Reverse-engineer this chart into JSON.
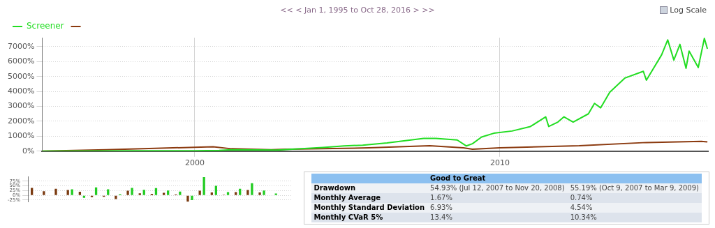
{
  "chart_data": [
    {
      "type": "line",
      "subtitle": "<< < Jan 1, 1995 to Oct 28, 2016 > >>",
      "annotations": [
        "Log Scale"
      ],
      "legend": "top",
      "grid": true,
      "marker": "none",
      "line_style": "solid",
      "xlim": [
        1995,
        2016.82
      ],
      "xticks": [
        2000,
        2010
      ],
      "ylim": [
        0,
        7600
      ],
      "yticks": [
        {
          "value": 0,
          "label": "0%"
        },
        {
          "value": 1000,
          "label": "1000%"
        },
        {
          "value": 2000,
          "label": "2000%"
        },
        {
          "value": 3000,
          "label": "3000%"
        },
        {
          "value": 4000,
          "label": "4000%"
        },
        {
          "value": 5000,
          "label": "5000%"
        },
        {
          "value": 6000,
          "label": "6000%"
        },
        {
          "value": 7000,
          "label": "7000%"
        }
      ],
      "series": [
        {
          "name": "Screener",
          "color": "#22dd22",
          "x": [
            1995,
            1998,
            2000,
            2000.8,
            2001.2,
            2002.7,
            2003.8,
            2004.2,
            2004.9,
            2005.5,
            2006.3,
            2007.5,
            2007.9,
            2008.6,
            2008.9,
            2009.1,
            2009.4,
            2009.8,
            2010.4,
            2011.0,
            2011.5,
            2011.6,
            2011.9,
            2012.1,
            2012.4,
            2012.9,
            2013.1,
            2013.3,
            2013.6,
            2014.1,
            2014.7,
            2014.8,
            2015.3,
            2015.5,
            2015.7,
            2015.9,
            2016.1,
            2016.2,
            2016.5,
            2016.7,
            2016.8
          ],
          "values": [
            0,
            20,
            30,
            50,
            90,
            70,
            200,
            250,
            350,
            400,
            550,
            850,
            850,
            750,
            350,
            500,
            950,
            1200,
            1350,
            1650,
            2300,
            1650,
            1950,
            2300,
            1950,
            2500,
            3200,
            2900,
            3950,
            4900,
            5350,
            4750,
            6450,
            7450,
            6100,
            7150,
            5550,
            6700,
            5600,
            7550,
            6850
          ]
        },
        {
          "color": "#8b3a0f",
          "x": [
            1995,
            1997.1,
            1998.5,
            2000,
            2000.6,
            2001.2,
            2002.5,
            2003,
            2005.7,
            2007.7,
            2008.8,
            2009.1,
            2010,
            2012.6,
            2014.8,
            2016.6,
            2016.8
          ],
          "values": [
            0,
            90,
            180,
            260,
            290,
            160,
            90,
            130,
            220,
            360,
            220,
            130,
            220,
            360,
            580,
            660,
            620
          ]
        }
      ]
    },
    {
      "type": "bar",
      "grid": "y",
      "ylim": [
        -35,
        100
      ],
      "yticks": [
        {
          "value": -25,
          "label": "-25%"
        },
        {
          "value": 0,
          "label": "0%"
        },
        {
          "value": 25,
          "label": "25%"
        },
        {
          "value": 50,
          "label": "50%"
        },
        {
          "value": 75,
          "label": "75%"
        }
      ],
      "categories": [
        null,
        null,
        null,
        null,
        null,
        null,
        null,
        null,
        null,
        null,
        null,
        null,
        null,
        null,
        null,
        null,
        null,
        null,
        null,
        null,
        null,
        null
      ],
      "series": [
        {
          "color": "#7a3a10",
          "values": [
            40,
            22,
            35,
            28,
            19,
            -10,
            -8,
            -20,
            25,
            11,
            8,
            14,
            5,
            -34,
            25,
            15,
            3,
            17,
            28,
            15,
            null,
            null
          ]
        },
        {
          "color": "#22cc22",
          "values": [
            null,
            null,
            null,
            32,
            -13,
            42,
            32,
            6,
            40,
            29,
            39,
            26,
            20,
            -25,
            97,
            51,
            17,
            35,
            65,
            26,
            10,
            null
          ]
        }
      ]
    },
    {
      "type": "other",
      "categories": [
        "Good to Great",
        null
      ],
      "y_categories": [
        "Drawdown",
        "Monthly Average",
        "Monthly Standard Deviation",
        "Monthly CVaR 5%"
      ],
      "cell_labels": [
        [
          "54.93% (Jul 12, 2007 to Nov 20, 2008)",
          "55.19% (Oct 9, 2007 to Mar 9, 2009)"
        ],
        [
          "1.67%",
          "0.74%"
        ],
        [
          "6.93%",
          "4.54%"
        ],
        [
          "13.4%",
          "10.34%"
        ]
      ]
    }
  ]
}
